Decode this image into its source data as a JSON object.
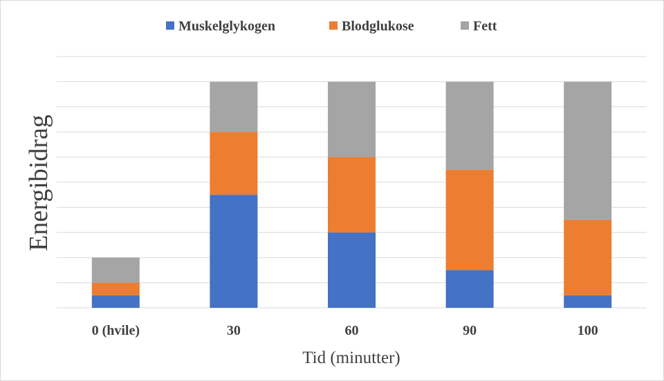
{
  "chart_data": {
    "type": "bar",
    "stacked": true,
    "title": "",
    "xlabel": "Tid (minutter)",
    "ylabel": "Energibidrag",
    "categories": [
      "0 (hvile)",
      "30",
      "60",
      "90",
      "100"
    ],
    "series": [
      {
        "name": "Muskelglykogen",
        "color": "#4472C4",
        "values": [
          0.5,
          4.5,
          3,
          1.5,
          0.5
        ]
      },
      {
        "name": "Blodglukose",
        "color": "#ED7D31",
        "values": [
          0.5,
          2.5,
          3,
          4,
          3
        ]
      },
      {
        "name": "Fett",
        "color": "#A5A5A5",
        "values": [
          1,
          2,
          3,
          3.5,
          5.5
        ]
      }
    ],
    "ylim": [
      0,
      10
    ],
    "grid": true,
    "y_tick_labels_shown": false,
    "legend": "top-center"
  }
}
